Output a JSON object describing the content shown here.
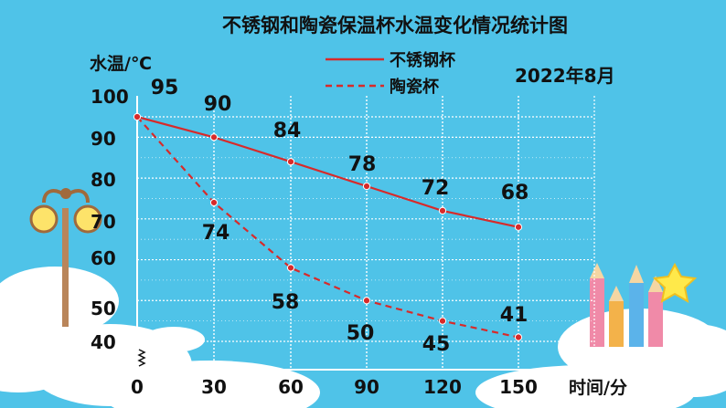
{
  "chart_data": {
    "type": "line",
    "title": "不锈钢和陶瓷保温杯水温变化情况统计图",
    "subtitle": "2022年8月",
    "ylabel": "水温/℃",
    "xlabel": "时间/分",
    "x": [
      0,
      30,
      60,
      90,
      120,
      150
    ],
    "x_tick_labels": [
      "0",
      "30",
      "60",
      "90",
      "120",
      "150"
    ],
    "y_tick_labels": [
      "100",
      "90",
      "80",
      "70",
      "60",
      "50",
      "40"
    ],
    "ylim": [
      40,
      100
    ],
    "axis_break": true,
    "grid": true,
    "legend_position": "top-center",
    "series": [
      {
        "name": "不锈钢杯",
        "style": "solid",
        "color": "#d82a2a",
        "values": [
          95,
          90,
          84,
          78,
          72,
          68
        ],
        "labels": [
          "95",
          "90",
          "84",
          "78",
          "72",
          "68"
        ]
      },
      {
        "name": "陶瓷杯",
        "style": "dashed",
        "color": "#d82a2a",
        "values": [
          95,
          74,
          58,
          50,
          45,
          41
        ],
        "labels": [
          "",
          "74",
          "58",
          "50",
          "45",
          "41"
        ]
      }
    ]
  },
  "colors": {
    "background": "#4fc3e8",
    "grid_line": "#ffffff",
    "series_line": "#d82a2a",
    "text": "#111111"
  }
}
